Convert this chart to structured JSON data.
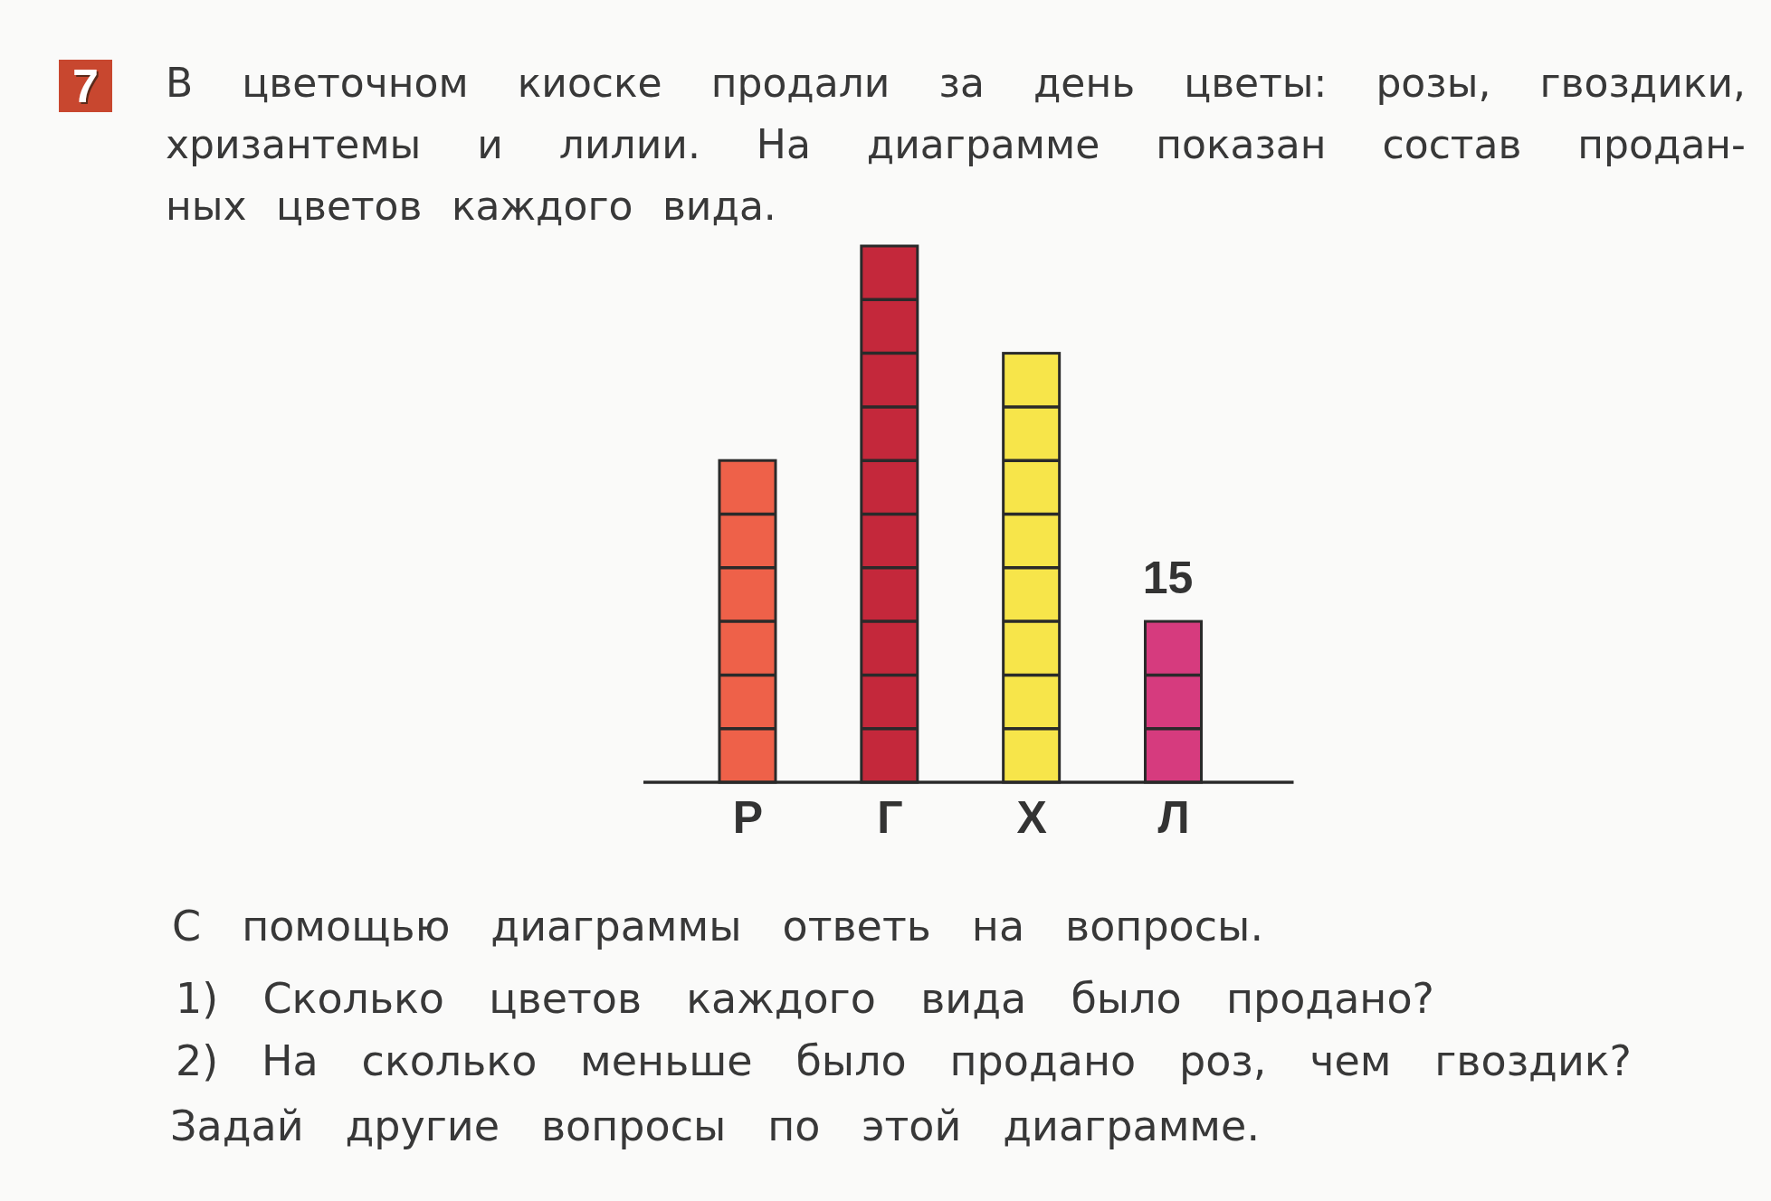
{
  "chart_data": {
    "type": "bar",
    "title": "В цветочном киоске продали за день цветы: розы, гвоздики,\nхризантемы и лилии. На диаграмме показан состав продан-\nных цветов каждого вида.",
    "categories": [
      "Р",
      "Г",
      "Х",
      "Л"
    ],
    "values": [
      30,
      50,
      40,
      15
    ],
    "colors": [
      "#ee6149",
      "#c4283b",
      "#f7e54a",
      "#d63b7e"
    ],
    "value_labels": [
      null,
      null,
      null,
      "15"
    ],
    "tick_labels": "x",
    "annotations": [
      "7",
      "С помощью диаграммы ответь на вопросы.",
      "1) Сколько цветов каждого вида было продано?",
      "2) На сколько меньше было продано роз, чем гвоздик?",
      "Задай другие вопросы по этой диаграмме."
    ]
  }
}
